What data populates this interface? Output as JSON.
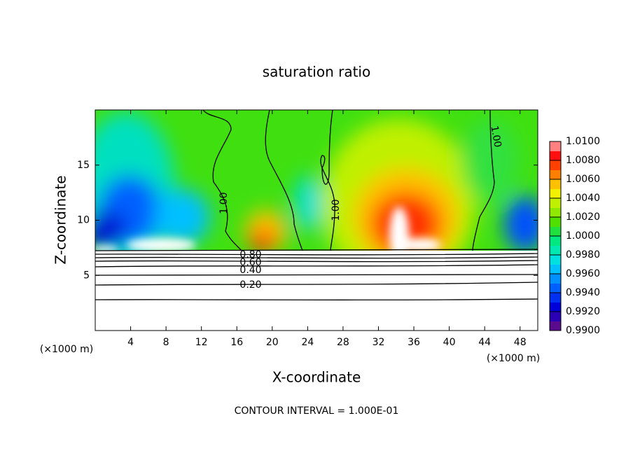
{
  "chart_data": {
    "type": "contour",
    "title": "saturation ratio",
    "xlabel": "X-coordinate",
    "ylabel": "Z-coordinate",
    "xunit": "(×1000 m)",
    "xlim": [
      0,
      50
    ],
    "ylim": [
      0,
      20
    ],
    "xticks": [
      4,
      8,
      12,
      16,
      20,
      24,
      28,
      32,
      36,
      40,
      44,
      48
    ],
    "yticks": [
      5,
      10,
      15
    ],
    "clim": [
      0.99,
      1.01
    ],
    "colors": [
      "#5a0a8c",
      "#2a00b4",
      "#0000d8",
      "#0030f0",
      "#0060ff",
      "#0090ff",
      "#00c0ff",
      "#00e0e0",
      "#00e8b0",
      "#00e880",
      "#20e040",
      "#50e000",
      "#90e800",
      "#c0f000",
      "#f0f000",
      "#ffc000",
      "#ff8000",
      "#ff4000",
      "#ff1010",
      "#ff8080"
    ],
    "cticks": [
      {
        "value": 0.99,
        "label": "0.9900"
      },
      {
        "value": 0.992,
        "label": "0.9920"
      },
      {
        "value": 0.994,
        "label": "0.9940"
      },
      {
        "value": 0.996,
        "label": "0.9960"
      },
      {
        "value": 0.998,
        "label": "0.9980"
      },
      {
        "value": 1.0,
        "label": "1.0000"
      },
      {
        "value": 1.002,
        "label": "1.0020"
      },
      {
        "value": 1.004,
        "label": "1.0040"
      },
      {
        "value": 1.006,
        "label": "1.0060"
      },
      {
        "value": 1.008,
        "label": "1.0080"
      },
      {
        "value": 1.01,
        "label": "1.0100"
      }
    ],
    "contour_labels": [
      "1.00",
      "1.00",
      "1.00",
      "0.80",
      "0.60",
      "0.40",
      "0.20"
    ],
    "footer": "CONTOUR INTERVAL = 1.000E-01"
  }
}
